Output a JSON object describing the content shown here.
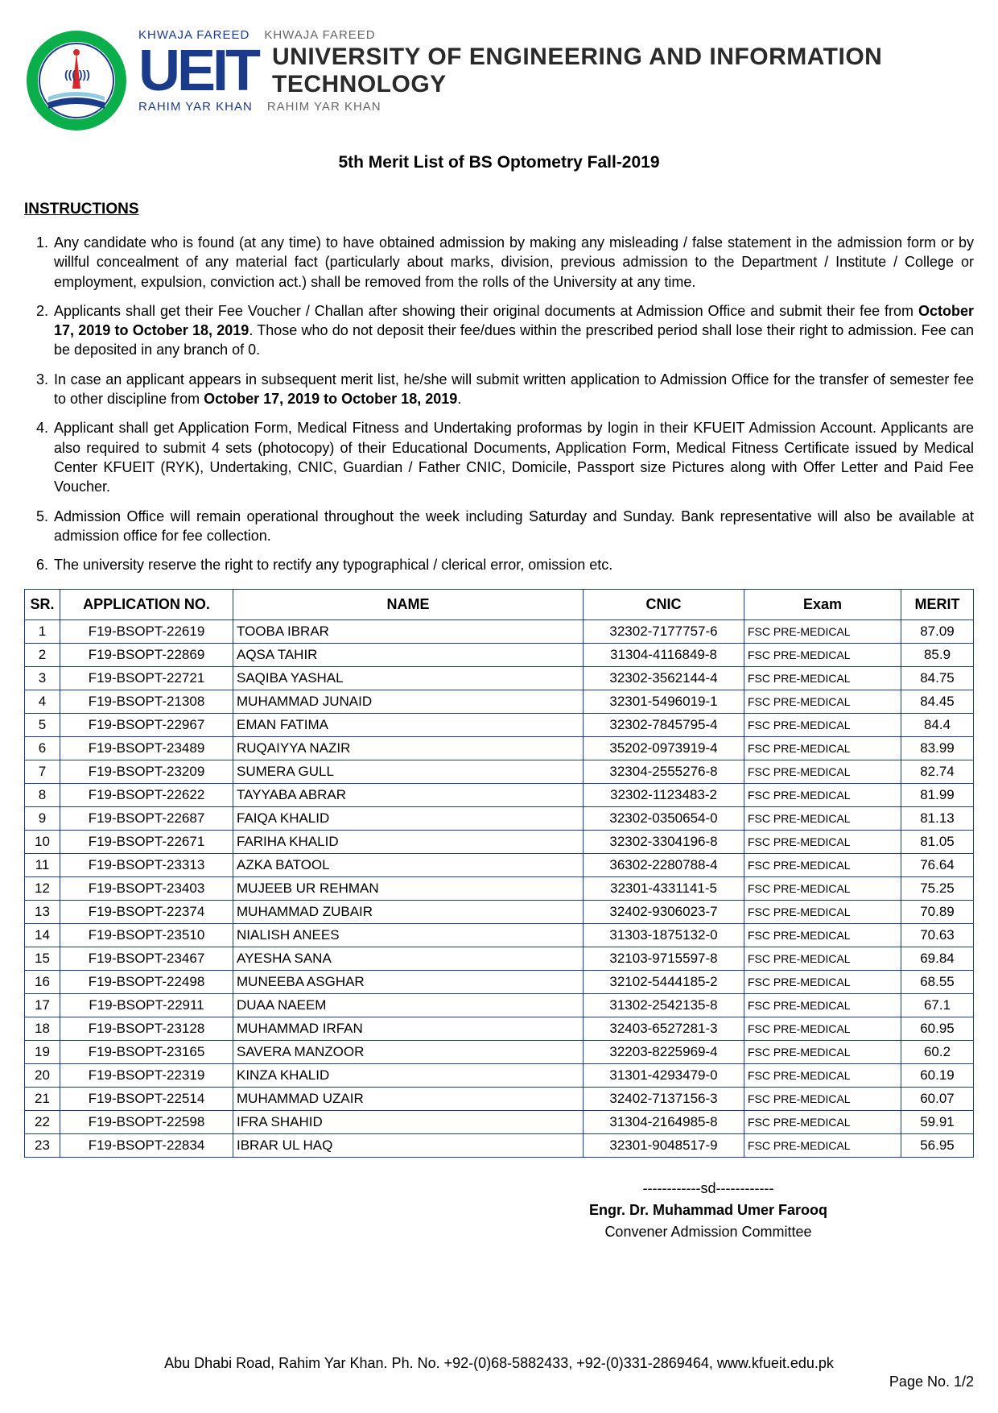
{
  "header": {
    "tagline_small_1": "KHWAJA FAREED",
    "tagline_small_2": "KHWAJA FAREED",
    "ueit": "UEIT",
    "university_name": "UNIVERSITY OF ENGINEERING AND INFORMATION TECHNOLOGY",
    "city_1": "RAHIM YAR KHAN",
    "city_2": "RAHIM YAR KHAN",
    "brand_color": "#1a3a8a",
    "logo_ring_color": "#0aae4a",
    "logo_inner_color": "#1a3a8a"
  },
  "title": "5th Merit List of BS Optometry Fall-2019",
  "instructions_heading": "INSTRUCTIONS",
  "instructions": [
    {
      "text": "Any candidate who is found (at any time) to have obtained admission by making any misleading / false statement in the admission form or by willful concealment of any material fact (particularly about marks, division, previous admission to the Department / Institute / College or employment, expulsion, conviction act.) shall be removed from the rolls of the University at any time."
    },
    {
      "pre": "Applicants shall get their Fee Voucher / Challan after showing their original documents at Admission Office and submit their fee from ",
      "bold": "October 17, 2019 to October 18, 2019",
      "post": ". Those who do not deposit their fee/dues within the prescribed period shall lose their right to admission. Fee can be deposited in any branch of 0."
    },
    {
      "pre": "In case an applicant appears in subsequent merit list, he/she will submit written application to Admission Office for the transfer of semester fee to other discipline from ",
      "bold": "October 17, 2019 to October 18, 2019",
      "post": "."
    },
    {
      "text": "Applicant shall get Application Form, Medical Fitness and Undertaking proformas by login in their KFUEIT Admission Account. Applicants are also required to submit 4 sets (photocopy) of their Educational Documents, Application Form, Medical Fitness Certificate issued by Medical Center KFUEIT (RYK), Undertaking, CNIC, Guardian / Father CNIC, Domicile, Passport size Pictures along with Offer Letter and Paid Fee Voucher."
    },
    {
      "text": "Admission Office will remain operational throughout the week including Saturday and Sunday. Bank representative will also be available at admission office for fee collection."
    },
    {
      "text": "The university reserve the right to rectify any typographical / clerical error, omission etc."
    }
  ],
  "table": {
    "columns": [
      "SR.",
      "APPLICATION NO.",
      "NAME",
      "CNIC",
      "Exam",
      "MERIT"
    ],
    "rows": [
      [
        "1",
        "F19-BSOPT-22619",
        "TOOBA IBRAR",
        "32302-7177757-6",
        "FSC PRE-MEDICAL",
        "87.09"
      ],
      [
        "2",
        "F19-BSOPT-22869",
        "AQSA TAHIR",
        "31304-4116849-8",
        "FSC PRE-MEDICAL",
        "85.9"
      ],
      [
        "3",
        "F19-BSOPT-22721",
        "SAQIBA YASHAL",
        "32302-3562144-4",
        "FSC PRE-MEDICAL",
        "84.75"
      ],
      [
        "4",
        "F19-BSOPT-21308",
        "MUHAMMAD JUNAID",
        "32301-5496019-1",
        "FSC PRE-MEDICAL",
        "84.45"
      ],
      [
        "5",
        "F19-BSOPT-22967",
        "EMAN FATIMA",
        "32302-7845795-4",
        "FSC PRE-MEDICAL",
        "84.4"
      ],
      [
        "6",
        "F19-BSOPT-23489",
        "RUQAIYYA NAZIR",
        "35202-0973919-4",
        "FSC PRE-MEDICAL",
        "83.99"
      ],
      [
        "7",
        "F19-BSOPT-23209",
        "SUMERA GULL",
        "32304-2555276-8",
        "FSC PRE-MEDICAL",
        "82.74"
      ],
      [
        "8",
        "F19-BSOPT-22622",
        "TAYYABA ABRAR",
        "32302-1123483-2",
        "FSC PRE-MEDICAL",
        "81.99"
      ],
      [
        "9",
        "F19-BSOPT-22687",
        "FAIQA KHALID",
        "32302-0350654-0",
        "FSC PRE-MEDICAL",
        "81.13"
      ],
      [
        "10",
        "F19-BSOPT-22671",
        "FARIHA KHALID",
        "32302-3304196-8",
        "FSC PRE-MEDICAL",
        "81.05"
      ],
      [
        "11",
        "F19-BSOPT-23313",
        "AZKA BATOOL",
        "36302-2280788-4",
        "FSC PRE-MEDICAL",
        "76.64"
      ],
      [
        "12",
        "F19-BSOPT-23403",
        "MUJEEB UR REHMAN",
        "32301-4331141-5",
        "FSC PRE-MEDICAL",
        "75.25"
      ],
      [
        "13",
        "F19-BSOPT-22374",
        "MUHAMMAD ZUBAIR",
        "32402-9306023-7",
        "FSC PRE-MEDICAL",
        "70.89"
      ],
      [
        "14",
        "F19-BSOPT-23510",
        "NIALISH ANEES",
        "31303-1875132-0",
        "FSC PRE-MEDICAL",
        "70.63"
      ],
      [
        "15",
        "F19-BSOPT-23467",
        "AYESHA SANA",
        "32103-9715597-8",
        "FSC PRE-MEDICAL",
        "69.84"
      ],
      [
        "16",
        "F19-BSOPT-22498",
        "MUNEEBA ASGHAR",
        "32102-5444185-2",
        "FSC PRE-MEDICAL",
        "68.55"
      ],
      [
        "17",
        "F19-BSOPT-22911",
        "DUAA NAEEM",
        "31302-2542135-8",
        "FSC PRE-MEDICAL",
        "67.1"
      ],
      [
        "18",
        "F19-BSOPT-23128",
        "MUHAMMAD IRFAN",
        "32403-6527281-3",
        "FSC PRE-MEDICAL",
        "60.95"
      ],
      [
        "19",
        "F19-BSOPT-23165",
        "SAVERA MANZOOR",
        "32203-8225969-4",
        "FSC PRE-MEDICAL",
        "60.2"
      ],
      [
        "20",
        "F19-BSOPT-22319",
        "KINZA KHALID",
        "31301-4293479-0",
        "FSC PRE-MEDICAL",
        "60.19"
      ],
      [
        "21",
        "F19-BSOPT-22514",
        "MUHAMMAD UZAIR",
        "32402-7137156-3",
        "FSC PRE-MEDICAL",
        "60.07"
      ],
      [
        "22",
        "F19-BSOPT-22598",
        "IFRA SHAHID",
        "31304-2164985-8",
        "FSC PRE-MEDICAL",
        "59.91"
      ],
      [
        "23",
        "F19-BSOPT-22834",
        "IBRAR UL HAQ",
        "32301-9048517-9",
        "FSC PRE-MEDICAL",
        "56.95"
      ]
    ],
    "border_color": "#1a3a8a"
  },
  "signature": {
    "sd": "------------sd------------",
    "name": "Engr. Dr. Muhammad Umer Farooq",
    "role": "Convener Admission Committee"
  },
  "footer": {
    "address": "Abu Dhabi Road, Rahim Yar Khan. Ph. No. +92-(0)68-5882433, +92-(0)331-2869464, www.kfueit.edu.pk",
    "page": "Page No. 1/2"
  }
}
